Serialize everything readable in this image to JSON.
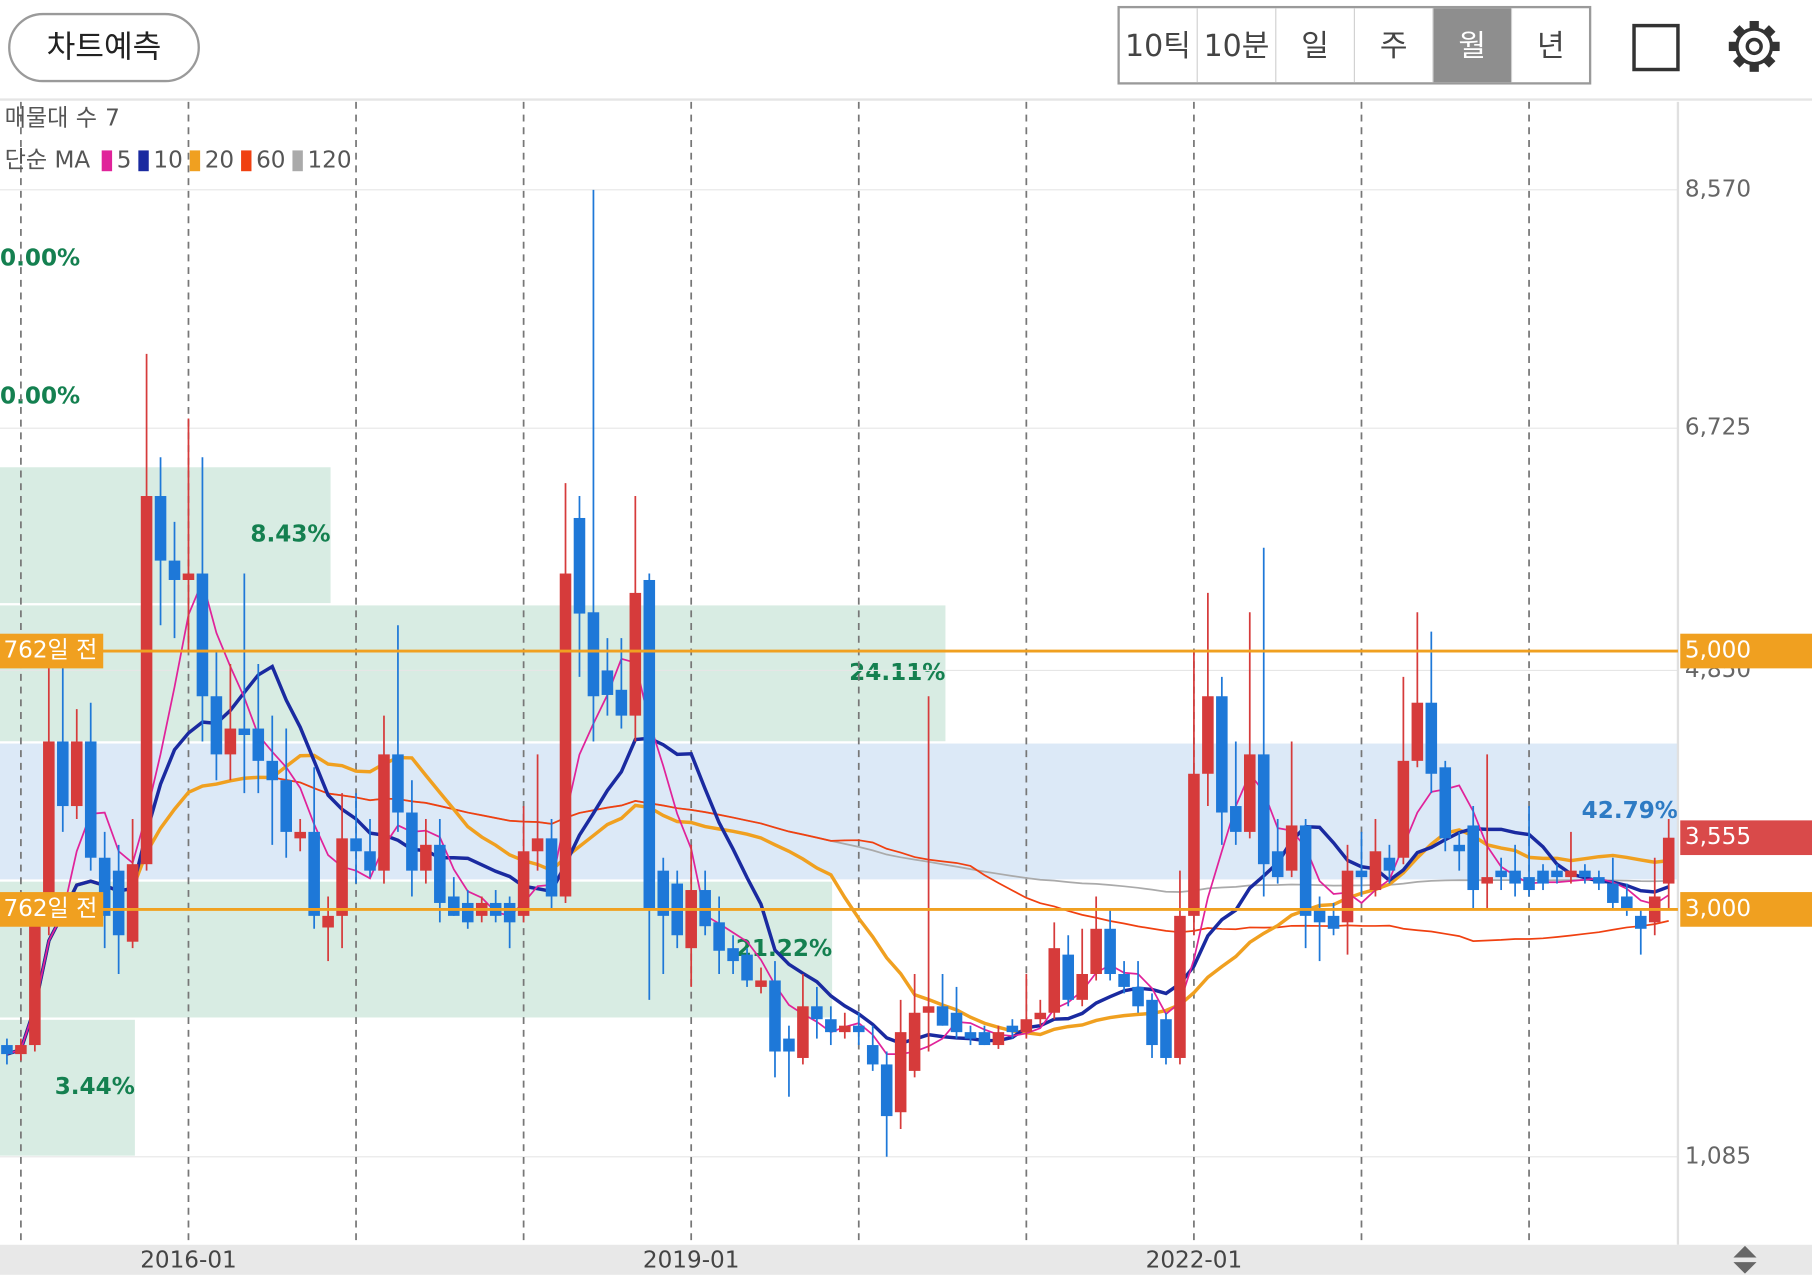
{
  "header": {
    "predict_button": "차트예측",
    "periods": [
      "10틱",
      "10분",
      "일",
      "주",
      "월",
      "년"
    ],
    "selected_period": 4
  },
  "legend": {
    "profile_label": "매물대 수",
    "profile_count": 7,
    "ma_label": "단순 MA",
    "ma": [
      {
        "period": 5,
        "color": "#e0239a"
      },
      {
        "period": 10,
        "color": "#1a2aa0"
      },
      {
        "period": 20,
        "color": "#f0a020"
      },
      {
        "period": 60,
        "color": "#f04010"
      },
      {
        "period": 120,
        "color": "#aaaaaa"
      }
    ]
  },
  "chart_data": {
    "type": "candlestick",
    "categories": [
      null,
      null,
      null,
      null,
      null,
      null,
      null,
      null,
      null,
      null,
      null,
      null,
      null,
      "2016-01",
      null,
      null,
      null,
      null,
      null,
      null,
      null,
      null,
      null,
      null,
      null,
      null,
      null,
      null,
      null,
      null,
      null,
      null,
      null,
      null,
      null,
      null,
      null,
      null,
      null,
      null,
      null,
      null,
      null,
      null,
      null,
      null,
      null,
      null,
      null,
      "2019-01",
      null,
      null,
      null,
      null,
      null,
      null,
      null,
      null,
      null,
      null,
      null,
      null,
      null,
      null,
      null,
      null,
      null,
      null,
      null,
      null,
      null,
      null,
      null,
      null,
      null,
      null,
      null,
      null,
      null,
      null,
      null,
      null,
      null,
      null,
      null,
      "2022-01",
      null,
      null,
      null,
      null,
      null,
      null,
      null,
      null,
      null,
      null,
      null,
      null,
      null,
      null,
      null,
      null,
      null,
      null,
      null,
      null,
      null,
      null,
      null,
      null,
      null,
      null,
      null,
      null,
      null,
      null,
      null,
      null,
      null,
      null
    ],
    "open": [
      1950,
      1880,
      1950,
      2900,
      4300,
      3800,
      4300,
      3400,
      3300,
      2750,
      3350,
      6200,
      5700,
      5550,
      5600,
      4650,
      4200,
      4400,
      4400,
      4150,
      4000,
      3550,
      3600,
      2860,
      2950,
      3550,
      3450,
      3300,
      4200,
      3750,
      3300,
      3500,
      3100,
      3050,
      2950,
      3050,
      3050,
      2950,
      3450,
      3550,
      3100,
      6030,
      5300,
      4850,
      4700,
      4500,
      5550,
      3300,
      3200,
      2700,
      3150,
      2900,
      2700,
      2650,
      2400,
      2450,
      2000,
      1850,
      2250,
      2150,
      2050,
      2100,
      1950,
      1800,
      1430,
      1750,
      2200,
      2250,
      2200,
      2050,
      2050,
      1950,
      2100,
      2050,
      2150,
      2200,
      2650,
      2300,
      2500,
      2850,
      2500,
      2400,
      2300,
      2150,
      1850,
      2950,
      4050,
      4650,
      3800,
      3600,
      4200,
      3450,
      3300,
      3650,
      3000,
      2950,
      2900,
      3300,
      3150,
      3400,
      3400,
      4150,
      4600,
      4100,
      3500,
      3650,
      3200,
      3300,
      3300,
      3250,
      3300,
      3300,
      3250,
      3300,
      3250,
      3200,
      3100,
      2950,
      2900,
      3200
    ],
    "high": [
      2000,
      2000,
      3000,
      5000,
      4900,
      4550,
      4600,
      3600,
      3500,
      3700,
      7300,
      6500,
      6000,
      6800,
      6500,
      5000,
      4900,
      5600,
      4900,
      4500,
      4400,
      3700,
      4100,
      3100,
      3900,
      3900,
      3700,
      4500,
      5200,
      4000,
      3700,
      3700,
      3250,
      3150,
      3100,
      3150,
      3100,
      3800,
      4200,
      3700,
      6300,
      6200,
      8570,
      5100,
      5100,
      6200,
      5600,
      3400,
      3300,
      3500,
      3300,
      3100,
      2800,
      2700,
      2550,
      2600,
      2100,
      2500,
      2400,
      2250,
      2200,
      2200,
      2100,
      1900,
      2300,
      2500,
      4650,
      2500,
      2400,
      2100,
      2100,
      2100,
      2150,
      2500,
      2300,
      2900,
      2800,
      2850,
      3100,
      3000,
      2600,
      2600,
      2350,
      2200,
      3300,
      5000,
      5450,
      4800,
      4300,
      5300,
      5800,
      3700,
      4300,
      3700,
      3100,
      3050,
      3500,
      3600,
      3700,
      3500,
      4800,
      5300,
      5150,
      4150,
      3600,
      3800,
      4200,
      3400,
      3500,
      3800,
      3350,
      3350,
      3600,
      3350,
      3300,
      3400,
      3200,
      3000,
      3400,
      3700
    ],
    "low": [
      1800,
      1830,
      1900,
      2800,
      3600,
      3700,
      3300,
      2700,
      2500,
      2700,
      3300,
      5200,
      5100,
      5000,
      4300,
      4000,
      4000,
      3900,
      3900,
      3500,
      3400,
      3450,
      2850,
      2600,
      2700,
      3200,
      3250,
      3200,
      3600,
      3100,
      3200,
      2900,
      2950,
      2850,
      2900,
      2900,
      2700,
      2900,
      3300,
      3000,
      3050,
      4800,
      4300,
      4500,
      4400,
      4300,
      2300,
      2500,
      2700,
      2400,
      2800,
      2500,
      2500,
      2400,
      2350,
      1700,
      1550,
      1800,
      2000,
      1950,
      2000,
      1950,
      1750,
      1085,
      1300,
      1700,
      1900,
      2100,
      2000,
      1950,
      1950,
      1920,
      2000,
      2000,
      2100,
      2150,
      2250,
      2250,
      2450,
      2450,
      2350,
      2200,
      1850,
      1800,
      1800,
      2800,
      3800,
      3500,
      3500,
      3550,
      3100,
      3200,
      3250,
      2700,
      2600,
      2800,
      2650,
      3100,
      3100,
      3200,
      3350,
      4100,
      3900,
      3450,
      3300,
      3000,
      3000,
      3150,
      3100,
      3100,
      3150,
      3200,
      3200,
      3200,
      3150,
      3000,
      2950,
      2650,
      2800,
      3000
    ],
    "close": [
      1880,
      1950,
      2900,
      4300,
      3800,
      4300,
      3400,
      2950,
      2800,
      3350,
      6200,
      5700,
      5550,
      5600,
      4650,
      4200,
      4400,
      4350,
      4150,
      4000,
      3600,
      3600,
      2950,
      2950,
      3550,
      3450,
      3300,
      4200,
      3750,
      3300,
      3500,
      3050,
      2950,
      2900,
      3050,
      2950,
      2900,
      3450,
      3550,
      3100,
      5600,
      5290,
      4650,
      4660,
      4500,
      5450,
      3000,
      2950,
      2800,
      3150,
      2870,
      2680,
      2600,
      2450,
      2450,
      1900,
      1900,
      2250,
      2150,
      2050,
      2100,
      2050,
      1800,
      1400,
      2050,
      2200,
      2250,
      2100,
      2050,
      2000,
      1950,
      2050,
      2050,
      2150,
      2200,
      2700,
      2300,
      2500,
      2850,
      2500,
      2400,
      2250,
      1950,
      1850,
      2950,
      4050,
      4650,
      3750,
      3600,
      4200,
      3350,
      3250,
      3650,
      2950,
      2900,
      2850,
      3300,
      3250,
      3450,
      3300,
      4150,
      4600,
      4050,
      3550,
      3450,
      3150,
      3250,
      3250,
      3200,
      3150,
      3200,
      3250,
      3300,
      3250,
      3200,
      3050,
      3000,
      2850,
      3100,
      3555
    ],
    "up_color": "#d63b3b",
    "down_color": "#1e78d8",
    "ylim": [
      404,
      9251
    ],
    "yticks": [
      {
        "value": 8570,
        "label": "8,570"
      },
      {
        "value": 6725,
        "label": "6,725"
      },
      {
        "value": 4850,
        "label": "4,850"
      },
      {
        "value": 1085,
        "label": "1,085"
      }
    ],
    "x_grid_step": 12,
    "volume_profile": {
      "values": [
        3.44,
        21.22,
        42.79,
        24.11,
        8.43,
        0,
        0
      ],
      "value_labels": [
        "3.44%",
        "21.22%",
        "42.79%",
        "24.11%",
        "8.43%",
        "0.00%",
        "0.00%"
      ],
      "color": "#d8ece3",
      "label_color": "#148050",
      "highlight_color": "#dce9f7",
      "highlight_label_color": "#2e7bc4"
    },
    "levels": [
      {
        "value": 5000,
        "label": "5,000",
        "note": "762일 전"
      },
      {
        "value": 3000,
        "label": "3,000",
        "note": "762일 전"
      }
    ],
    "level_color": "#f0a020",
    "current_price": {
      "value": 3555,
      "label": "3,555",
      "color": "#d94a4a"
    }
  }
}
